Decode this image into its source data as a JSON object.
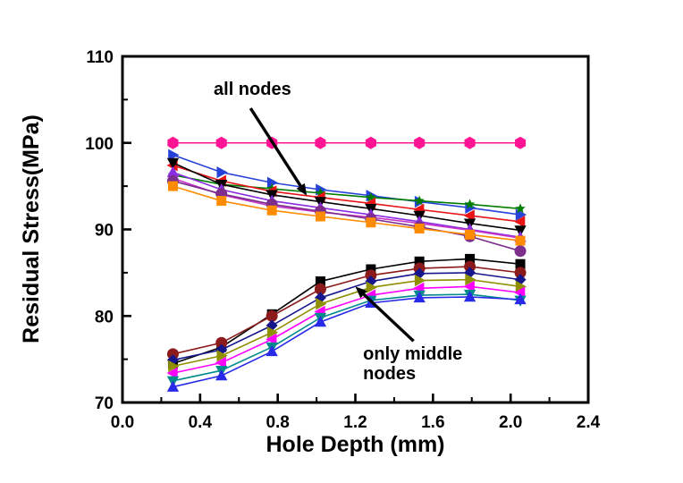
{
  "chart_data": {
    "type": "line",
    "xlabel": "Hole Depth (mm)",
    "ylabel": "Residual Stress(MPa)",
    "xlim": [
      0.0,
      2.4
    ],
    "ylim": [
      70,
      110
    ],
    "grid": false,
    "legend": "none",
    "xticks": {
      "major": [
        0.0,
        0.4,
        0.8,
        1.2,
        1.6,
        2.0,
        2.4
      ],
      "labels": [
        "0.0",
        "0.4",
        "0.8",
        "1.2",
        "1.6",
        "2.0",
        "2.4"
      ],
      "minor": [
        0.2,
        0.6,
        1.0,
        1.4,
        1.8,
        2.2
      ]
    },
    "yticks": {
      "major": [
        70,
        80,
        90,
        100,
        110
      ],
      "labels": [
        "70",
        "80",
        "90",
        "100",
        "110"
      ],
      "minor": [
        75,
        85,
        95,
        105
      ]
    },
    "x": [
      0.26,
      0.51,
      0.77,
      1.02,
      1.28,
      1.53,
      1.79,
      2.05
    ],
    "series": [
      {
        "name": "reference-100MPa",
        "group": "reference",
        "color": "#FF1493",
        "marker": "hexagon",
        "msize": 7,
        "values": [
          100,
          100,
          100,
          100,
          100,
          100,
          100,
          100
        ]
      },
      {
        "name": "all-nodes-1",
        "group": "all nodes",
        "color": "#2643D9",
        "marker": "triangle-right",
        "msize": 7,
        "values": [
          98.6,
          96.6,
          95.4,
          94.6,
          93.9,
          93.2,
          92.5,
          91.7
        ]
      },
      {
        "name": "all-nodes-2",
        "group": "all nodes",
        "color": "#007D00",
        "marker": "star",
        "msize": 6,
        "values": [
          96.3,
          95.2,
          94.7,
          94.2,
          93.7,
          93.3,
          92.9,
          92.4
        ]
      },
      {
        "name": "all-nodes-3",
        "group": "all nodes",
        "color": "#E81416",
        "marker": "triangle-left",
        "msize": 7,
        "values": [
          97.4,
          95.6,
          94.4,
          93.7,
          93.0,
          92.3,
          91.6,
          90.9
        ]
      },
      {
        "name": "all-nodes-4",
        "group": "all nodes",
        "color": "#000000",
        "marker": "triangle-down",
        "msize": 7,
        "values": [
          97.7,
          95.2,
          94.0,
          93.2,
          92.4,
          91.6,
          90.7,
          89.9
        ]
      },
      {
        "name": "all-nodes-5",
        "group": "all nodes",
        "color": "#8A2BE2",
        "marker": "triangle-up",
        "msize": 7,
        "values": [
          96.6,
          94.6,
          93.3,
          92.5,
          91.7,
          90.9,
          90.0,
          89.1
        ]
      },
      {
        "name": "all-nodes-6",
        "group": "all nodes",
        "color": "#C734C7",
        "marker": "none",
        "msize": 0,
        "values": [
          95.9,
          94.0,
          92.7,
          92.0,
          91.4,
          90.7,
          89.9,
          89.0
        ]
      },
      {
        "name": "all-nodes-7",
        "group": "all nodes",
        "color": "#7D2E8D",
        "marker": "circle",
        "msize": 6.5,
        "values": [
          95.6,
          94.1,
          92.9,
          92.1,
          91.2,
          90.3,
          89.2,
          87.5
        ]
      },
      {
        "name": "all-nodes-8",
        "group": "all nodes",
        "color": "#FF8C00",
        "marker": "square",
        "msize": 5.5,
        "values": [
          95.0,
          93.3,
          92.2,
          91.5,
          90.8,
          90.1,
          89.4,
          88.7
        ]
      },
      {
        "name": "middle-nodes-1",
        "group": "only middle nodes",
        "color": "#000000",
        "marker": "square",
        "msize": 5.5,
        "values": [
          74.5,
          76.4,
          80.2,
          84.0,
          85.4,
          86.3,
          86.6,
          86.0
        ]
      },
      {
        "name": "middle-nodes-2",
        "group": "only middle nodes",
        "color": "#8B1A1A",
        "marker": "circle",
        "msize": 6.5,
        "values": [
          75.6,
          76.9,
          80.0,
          83.1,
          84.7,
          85.5,
          85.7,
          85.0
        ]
      },
      {
        "name": "middle-nodes-3",
        "group": "only middle nodes",
        "color": "#16168C",
        "marker": "diamond",
        "msize": 6.5,
        "values": [
          74.9,
          76.1,
          78.9,
          82.1,
          84.0,
          84.9,
          85.0,
          84.2
        ]
      },
      {
        "name": "middle-nodes-4",
        "group": "only middle nodes",
        "color": "#8F8F00",
        "marker": "triangle-right",
        "msize": 7,
        "values": [
          74.2,
          75.4,
          78.1,
          81.4,
          83.3,
          84.1,
          84.2,
          83.4
        ]
      },
      {
        "name": "middle-nodes-5",
        "group": "only middle nodes",
        "color": "#FF00FF",
        "marker": "triangle-left",
        "msize": 7,
        "values": [
          73.4,
          74.6,
          77.3,
          80.5,
          82.4,
          83.2,
          83.4,
          82.7
        ]
      },
      {
        "name": "middle-nodes-6",
        "group": "only middle nodes",
        "color": "#008B8B",
        "marker": "triangle-down",
        "msize": 7,
        "values": [
          72.5,
          73.7,
          76.4,
          79.8,
          81.8,
          82.4,
          82.5,
          81.8
        ]
      },
      {
        "name": "middle-nodes-7",
        "group": "only middle nodes",
        "color": "#2929E8",
        "marker": "triangle-up",
        "msize": 7,
        "values": [
          71.8,
          73.1,
          75.9,
          79.3,
          81.5,
          82.1,
          82.2,
          81.9
        ]
      }
    ],
    "annotations": [
      {
        "id": "all-nodes-label",
        "lines": [
          "all nodes"
        ],
        "x": 0.47,
        "y": 107.3,
        "arrow": {
          "x1": 0.66,
          "y1": 104.0,
          "x2": 0.95,
          "y2": 93.9
        }
      },
      {
        "id": "only-middle-nodes-label",
        "lines": [
          "only middle",
          "nodes"
        ],
        "x": 1.24,
        "y": 76.7,
        "arrow": {
          "x1": 1.5,
          "y1": 77.1,
          "x2": 1.2,
          "y2": 83.4
        }
      }
    ],
    "annotation_color": "#000000",
    "axis_color": "#000000"
  }
}
